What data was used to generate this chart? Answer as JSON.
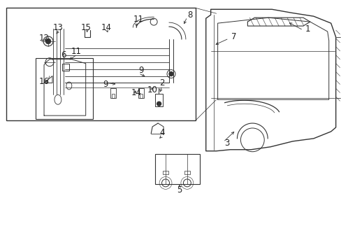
{
  "bg_color": "#ffffff",
  "line_color": "#333333",
  "label_color": "#222222",
  "label_fontsize": 8.5,
  "fig_width": 4.89,
  "fig_height": 3.6
}
